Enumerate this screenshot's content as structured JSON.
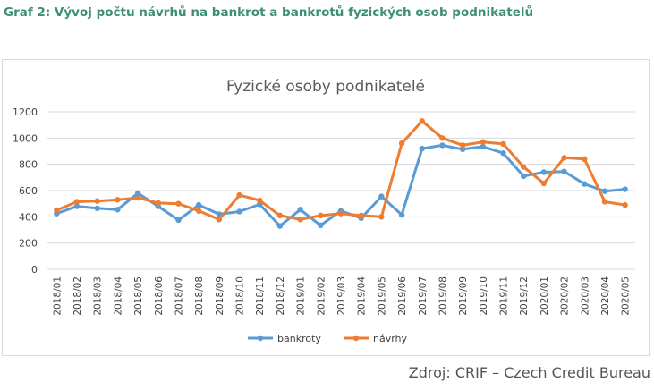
{
  "heading": "Graf 2: Vývoj počtu návrhů na bankrot a bankrotů fyzických osob podnikatelů",
  "source": "Zdroj: CRIF – Czech Credit Bureau",
  "colors": {
    "bankroty": "#5b9bd5",
    "navrhy": "#ed7d31",
    "heading": "#3c8f76"
  },
  "chart_data": {
    "type": "line",
    "title": "Fyzické osoby podnikatelé",
    "xlabel": "",
    "ylabel": "",
    "ylim": [
      0,
      1200
    ],
    "yticks": [
      0,
      200,
      400,
      600,
      800,
      1000,
      1200
    ],
    "grid": true,
    "legend": "bottom",
    "categories": [
      "2018/01",
      "2018/02",
      "2018/03",
      "2018/04",
      "2018/05",
      "2018/06",
      "2018/07",
      "2018/08",
      "2018/09",
      "2018/10",
      "2018/11",
      "2018/12",
      "2019/01",
      "2019/02",
      "2019/03",
      "2019/04",
      "2019/05",
      "2019/06",
      "2019/07",
      "2019/08",
      "2019/09",
      "2019/10",
      "2019/11",
      "2019/12",
      "2020/01",
      "2020/02",
      "2020/03",
      "2020/04",
      "2020/05"
    ],
    "series": [
      {
        "name": "bankroty",
        "color": "#5b9bd5",
        "values": [
          425,
          480,
          465,
          455,
          580,
          480,
          375,
          490,
          420,
          440,
          495,
          330,
          455,
          335,
          445,
          390,
          555,
          415,
          920,
          945,
          915,
          935,
          885,
          710,
          740,
          745,
          650,
          595,
          610
        ]
      },
      {
        "name": "návrhy",
        "color": "#ed7d31",
        "values": [
          450,
          515,
          520,
          530,
          545,
          505,
          500,
          445,
          380,
          565,
          525,
          410,
          380,
          410,
          425,
          410,
          400,
          960,
          1130,
          1000,
          945,
          970,
          955,
          780,
          655,
          850,
          840,
          515,
          490
        ]
      }
    ]
  }
}
